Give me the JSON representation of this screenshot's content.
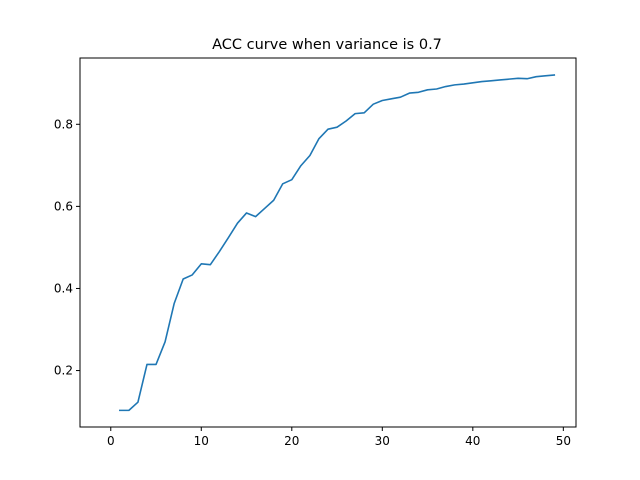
{
  "chart_data": {
    "type": "line",
    "title": "ACC curve when variance is 0.7",
    "xlabel": "",
    "ylabel": "",
    "xlim": [
      -3.4,
      51.4
    ],
    "ylim": [
      0.0625,
      0.9615
    ],
    "x_ticks": [
      0,
      10,
      20,
      30,
      40,
      50
    ],
    "x_tick_labels": [
      "0",
      "10",
      "20",
      "30",
      "40",
      "50"
    ],
    "y_ticks": [
      0.2,
      0.4,
      0.6,
      0.8
    ],
    "y_tick_labels": [
      "0.2",
      "0.4",
      "0.6",
      "0.8"
    ],
    "grid": false,
    "legend": false,
    "colors": {
      "line": "#1f77b4",
      "axes": "#000000"
    },
    "series": [
      {
        "x": [
          1,
          2,
          3,
          4,
          5,
          6,
          7,
          8,
          9,
          10,
          11,
          12,
          13,
          14,
          15,
          16,
          17,
          18,
          19,
          20,
          21,
          22,
          23,
          24,
          25,
          26,
          27,
          28,
          29,
          30,
          31,
          32,
          33,
          34,
          35,
          36,
          37,
          38,
          39,
          40,
          41,
          42,
          43,
          44,
          45,
          46,
          47,
          48,
          49
        ],
        "values": [
          0.103,
          0.103,
          0.123,
          0.215,
          0.215,
          0.27,
          0.363,
          0.423,
          0.433,
          0.46,
          0.458,
          0.49,
          0.524,
          0.559,
          0.584,
          0.575,
          0.595,
          0.615,
          0.655,
          0.665,
          0.699,
          0.724,
          0.765,
          0.788,
          0.793,
          0.808,
          0.826,
          0.828,
          0.849,
          0.858,
          0.862,
          0.866,
          0.876,
          0.878,
          0.884,
          0.886,
          0.892,
          0.896,
          0.898,
          0.901,
          0.904,
          0.906,
          0.908,
          0.91,
          0.912,
          0.911,
          0.916,
          0.918,
          0.92
        ]
      }
    ]
  }
}
